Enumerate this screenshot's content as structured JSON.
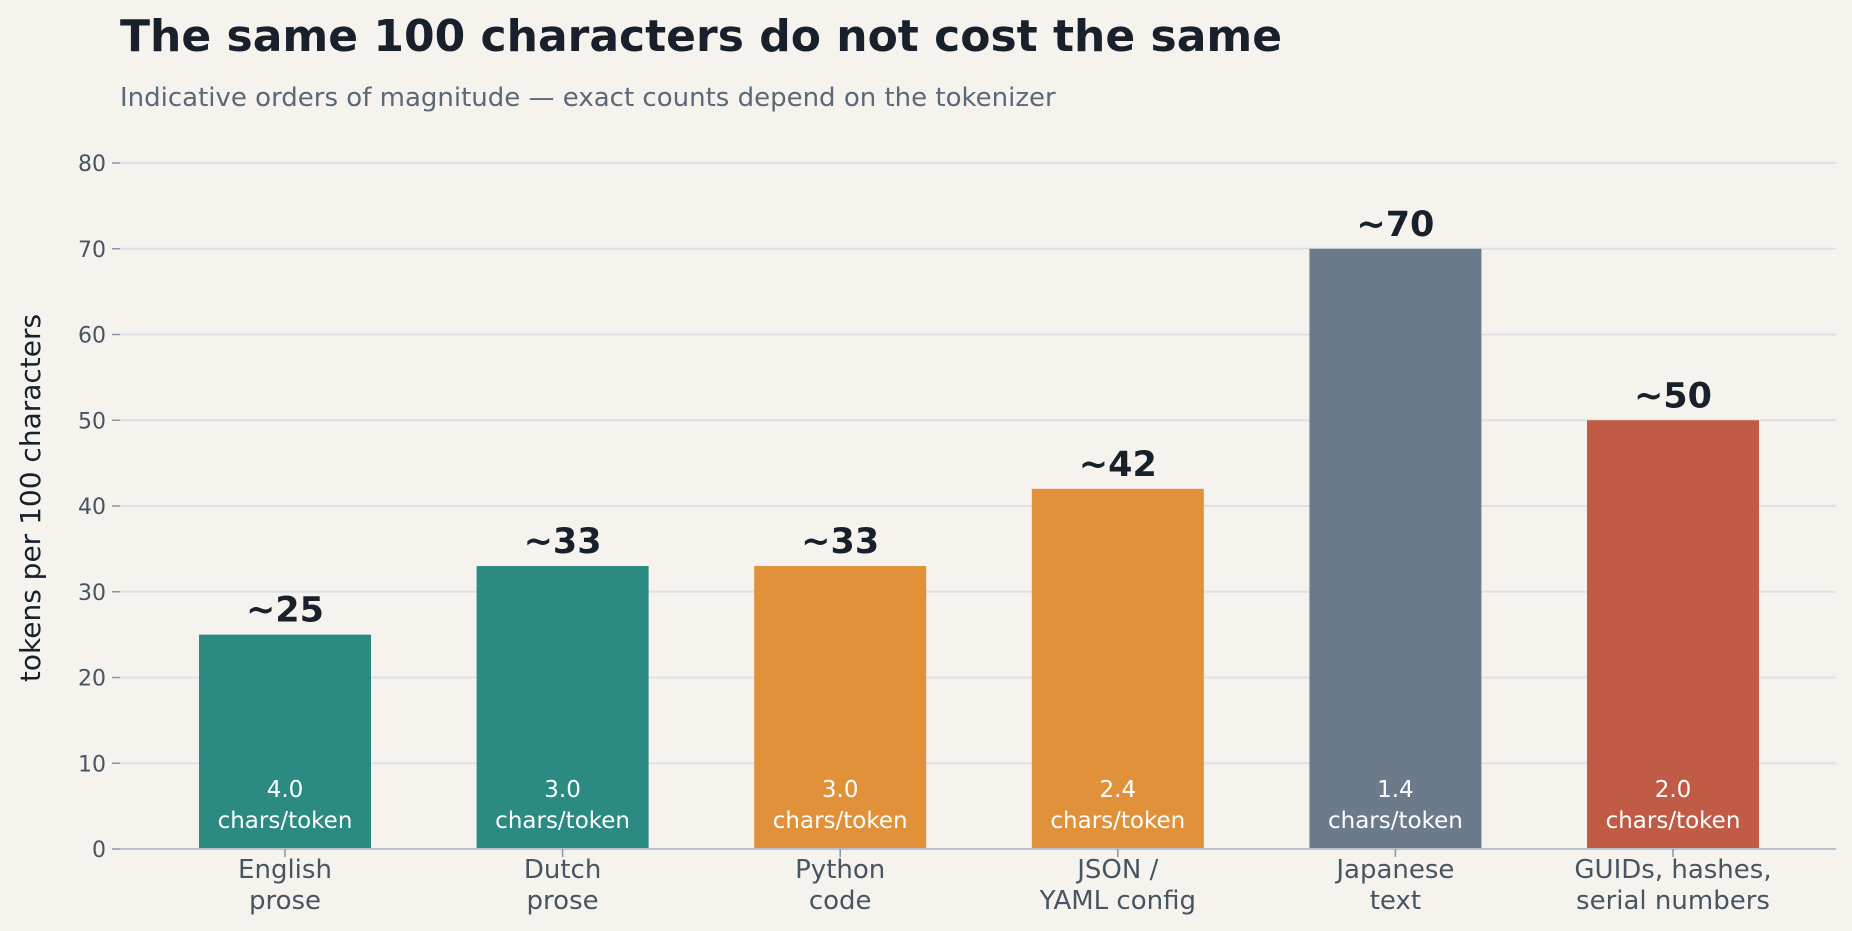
{
  "chart_data": {
    "type": "bar",
    "title": "The same 100 characters do not cost the same",
    "subtitle": "Indicative orders of magnitude — exact counts depend on the tokenizer",
    "ylabel": "tokens per 100 characters",
    "xlabel": "",
    "ylim": [
      0,
      80
    ],
    "yticks": [
      0,
      10,
      20,
      30,
      40,
      50,
      60,
      70,
      80
    ],
    "grid": true,
    "categories": [
      [
        "English",
        "prose"
      ],
      [
        "Dutch",
        "prose"
      ],
      [
        "Python",
        "code"
      ],
      [
        "JSON /",
        "YAML config"
      ],
      [
        "Japanese",
        "text"
      ],
      [
        "GUIDs, hashes,",
        "serial numbers"
      ]
    ],
    "values": [
      25,
      33,
      33,
      42,
      70,
      50
    ],
    "value_labels": [
      "~25",
      "~33",
      "~33",
      "~42",
      "~70",
      "~50"
    ],
    "chars_per_token": [
      "4.0",
      "3.0",
      "3.0",
      "2.4",
      "1.4",
      "2.0"
    ],
    "ratio_unit": "chars/token",
    "colors": [
      "#2b8b82",
      "#2b8b82",
      "#e0913a",
      "#e0913a",
      "#6b7b8b",
      "#c05c45"
    ]
  }
}
